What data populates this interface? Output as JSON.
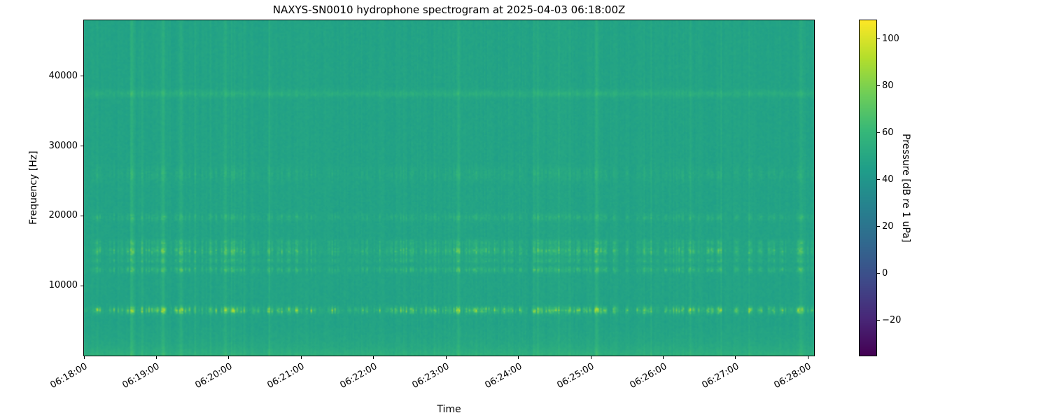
{
  "chart_data": {
    "type": "heatmap",
    "subtype": "spectrogram",
    "title": "NAXYS-SN0010 hydrophone spectrogram at 2025-04-03 06:18:00Z",
    "xlabel": "Time",
    "ylabel": "Frequency [Hz]",
    "x_ticks": [
      "06:18:00",
      "06:19:00",
      "06:20:00",
      "06:21:00",
      "06:22:00",
      "06:23:00",
      "06:24:00",
      "06:25:00",
      "06:26:00",
      "06:27:00",
      "06:28:00"
    ],
    "y_ticks": [
      10000,
      20000,
      30000,
      40000
    ],
    "freq_range_hz": [
      0,
      48000
    ],
    "time_range_s": [
      0,
      605
    ],
    "colormap": "viridis",
    "grid": false,
    "colorbar": {
      "label": "Pressure [dB re 1 uPa]",
      "ticks": [
        100,
        80,
        60,
        40,
        20,
        0,
        -20
      ],
      "vmin": -35,
      "vmax": 108,
      "position": "right"
    },
    "background_level_db": 48,
    "features": {
      "low_freq_band": {
        "cutoff_hz": 2800,
        "amp_db": 8
      },
      "tonal_bands": [
        {
          "freq_hz": 6500,
          "sigma_hz": 320,
          "amp_db": 38,
          "intermittent": true
        },
        {
          "freq_hz": 12300,
          "sigma_hz": 280,
          "amp_db": 18,
          "intermittent": true
        },
        {
          "freq_hz": 13600,
          "sigma_hz": 240,
          "amp_db": 13,
          "intermittent": true
        },
        {
          "freq_hz": 15000,
          "sigma_hz": 450,
          "amp_db": 22,
          "intermittent": true
        },
        {
          "freq_hz": 16200,
          "sigma_hz": 280,
          "amp_db": 12,
          "intermittent": true
        },
        {
          "freq_hz": 19800,
          "sigma_hz": 350,
          "amp_db": 11,
          "intermittent": true
        },
        {
          "freq_hz": 26000,
          "sigma_hz": 700,
          "amp_db": 7,
          "intermittent": true
        },
        {
          "freq_hz": 37500,
          "sigma_hz": 350,
          "amp_db": 9,
          "intermittent": false
        }
      ],
      "broadband_transient_times": [
        "06:18:40",
        "06:19:05",
        "06:19:20",
        "06:23:10",
        "06:25:05",
        "06:27:55"
      ]
    }
  }
}
